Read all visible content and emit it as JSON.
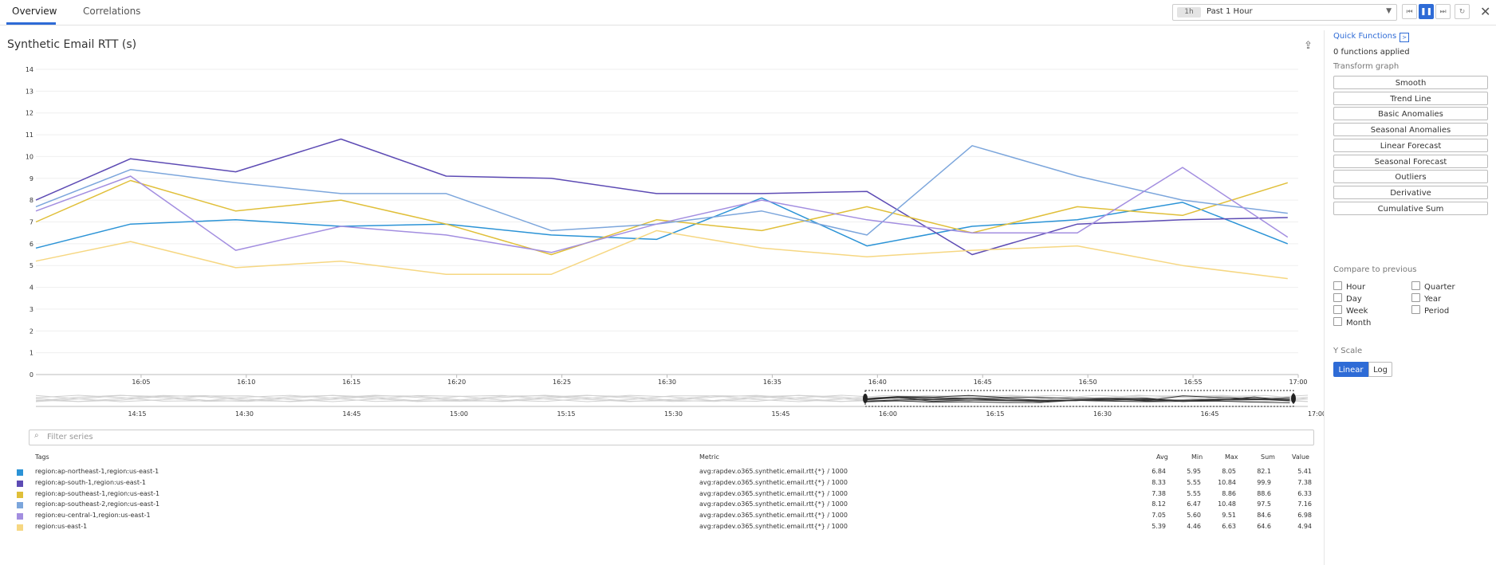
{
  "tabs": [
    {
      "label": "Overview",
      "active": true
    },
    {
      "label": "Correlations",
      "active": false
    }
  ],
  "time": {
    "badge": "1h",
    "label": "Past 1 Hour"
  },
  "controls": {
    "rewind": "⏮",
    "pause": "❚❚",
    "forward": "⏭",
    "refresh": "↻",
    "close": "✕"
  },
  "graph": {
    "title": "Synthetic Email RTT (s)",
    "export_icon": "export-icon"
  },
  "chart_data": {
    "type": "line",
    "title": "Synthetic Email RTT (s)",
    "xlabel": "",
    "ylabel": "",
    "ylim": [
      0,
      14
    ],
    "yticks": [
      "0",
      "1",
      "2",
      "3",
      "4",
      "5",
      "6",
      "7",
      "8",
      "9",
      "10",
      "11",
      "12",
      "13",
      "14"
    ],
    "xticks": [
      "16:05",
      "16:10",
      "16:15",
      "16:20",
      "16:25",
      "16:30",
      "16:35",
      "16:40",
      "16:45",
      "16:50",
      "16:55",
      "17:00"
    ],
    "x": [
      0,
      4.5,
      9.5,
      14.5,
      19.5,
      24.5,
      29.5,
      34.5,
      39.5,
      44.5,
      49.5,
      54.5,
      59.5
    ],
    "grid": true,
    "series": [
      {
        "name": "region:ap-northeast-1,region:us-east-1",
        "color": "#2b93d6",
        "values": [
          5.8,
          6.9,
          7.1,
          6.8,
          6.9,
          6.4,
          6.2,
          8.1,
          5.9,
          6.8,
          7.1,
          7.9,
          6.0
        ]
      },
      {
        "name": "region:ap-south-1,region:us-east-1",
        "color": "#5d4bb4",
        "values": [
          8.0,
          9.9,
          9.3,
          10.8,
          9.1,
          9.0,
          8.3,
          8.3,
          8.4,
          5.5,
          6.9,
          7.1,
          7.2
        ]
      },
      {
        "name": "region:ap-southeast-1,region:us-east-1",
        "color": "#e0bf39",
        "values": [
          7.0,
          8.9,
          7.5,
          8.0,
          6.9,
          5.5,
          7.1,
          6.6,
          7.7,
          6.5,
          7.7,
          7.3,
          8.8
        ]
      },
      {
        "name": "region:ap-southeast-2,region:us-east-1",
        "color": "#7ca6dc",
        "values": [
          7.7,
          9.4,
          8.8,
          8.3,
          8.3,
          6.6,
          6.9,
          7.5,
          6.4,
          10.5,
          9.1,
          8.0,
          7.4
        ]
      },
      {
        "name": "region:eu-central-1,region:us-east-1",
        "color": "#a38ee0",
        "values": [
          7.5,
          9.1,
          5.7,
          6.8,
          6.4,
          5.6,
          6.9,
          8.0,
          7.1,
          6.5,
          6.5,
          9.5,
          6.3
        ]
      },
      {
        "name": "region:us-east-1",
        "color": "#f6d782",
        "values": [
          5.2,
          6.1,
          4.9,
          5.2,
          4.6,
          4.6,
          6.6,
          5.8,
          5.4,
          5.7,
          5.9,
          5.0,
          4.4
        ]
      }
    ]
  },
  "overview": {
    "xticks": [
      "14:15",
      "14:30",
      "14:45",
      "15:00",
      "15:15",
      "15:30",
      "15:45",
      "16:00",
      "16:15",
      "16:30",
      "16:45",
      "17:00"
    ]
  },
  "quick": {
    "title": "Quick Functions",
    "applied": "0 functions applied",
    "transform": "Transform graph",
    "buttons": [
      "Smooth",
      "Trend Line",
      "Basic Anomalies",
      "Seasonal Anomalies",
      "Linear Forecast",
      "Seasonal Forecast",
      "Outliers",
      "Derivative",
      "Cumulative Sum"
    ],
    "compare": "Compare to previous",
    "compare_left": [
      "Hour",
      "Day",
      "Week",
      "Month"
    ],
    "compare_right": [
      "Quarter",
      "Year",
      "Period"
    ],
    "yscale": "Y Scale",
    "linear": "Linear",
    "log": "Log"
  },
  "filter": {
    "placeholder": "Filter series"
  },
  "table": {
    "headers": {
      "tags": "Tags",
      "metric": "Metric",
      "avg": "Avg",
      "min": "Min",
      "max": "Max",
      "sum": "Sum",
      "value": "Value"
    },
    "rows": [
      {
        "color": "#2b93d6",
        "tags": "region:ap-northeast-1,region:us-east-1",
        "metric": "avg:rapdev.o365.synthetic.email.rtt{*} / 1000",
        "avg": "6.84",
        "min": "5.95",
        "max": "8.05",
        "sum": "82.1",
        "value": "5.41"
      },
      {
        "color": "#5d4bb4",
        "tags": "region:ap-south-1,region:us-east-1",
        "metric": "avg:rapdev.o365.synthetic.email.rtt{*} / 1000",
        "avg": "8.33",
        "min": "5.55",
        "max": "10.84",
        "sum": "99.9",
        "value": "7.38"
      },
      {
        "color": "#e0bf39",
        "tags": "region:ap-southeast-1,region:us-east-1",
        "metric": "avg:rapdev.o365.synthetic.email.rtt{*} / 1000",
        "avg": "7.38",
        "min": "5.55",
        "max": "8.86",
        "sum": "88.6",
        "value": "6.33"
      },
      {
        "color": "#7ca6dc",
        "tags": "region:ap-southeast-2,region:us-east-1",
        "metric": "avg:rapdev.o365.synthetic.email.rtt{*} / 1000",
        "avg": "8.12",
        "min": "6.47",
        "max": "10.48",
        "sum": "97.5",
        "value": "7.16"
      },
      {
        "color": "#a38ee0",
        "tags": "region:eu-central-1,region:us-east-1",
        "metric": "avg:rapdev.o365.synthetic.email.rtt{*} / 1000",
        "avg": "7.05",
        "min": "5.60",
        "max": "9.51",
        "sum": "84.6",
        "value": "6.98"
      },
      {
        "color": "#f6d782",
        "tags": "region:us-east-1",
        "metric": "avg:rapdev.o365.synthetic.email.rtt{*} / 1000",
        "avg": "5.39",
        "min": "4.46",
        "max": "6.63",
        "sum": "64.6",
        "value": "4.94"
      }
    ]
  }
}
